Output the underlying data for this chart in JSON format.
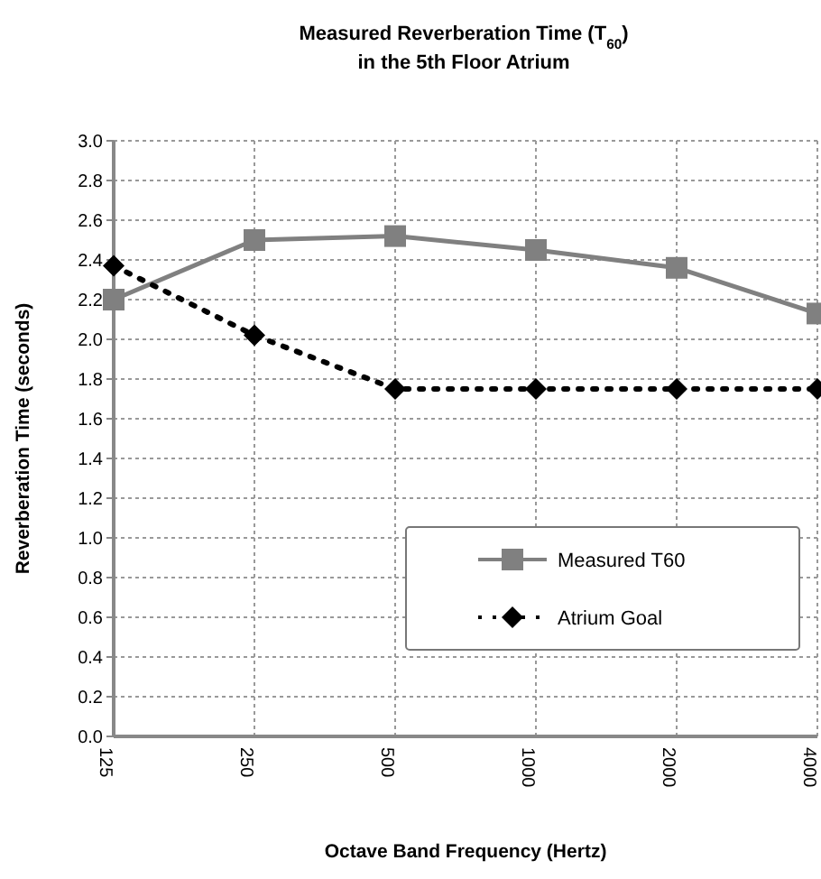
{
  "chart_data": {
    "type": "line",
    "title": "Measured Reverberation Time (T$_{60}$)\nin the 5th Floor Atrium",
    "xlabel": "Octave Band Frequency (Hertz)",
    "ylabel": "Reverberation Time (seconds)",
    "categories": [
      "125",
      "250",
      "500",
      "1000",
      "2000",
      "4000"
    ],
    "series": [
      {
        "name": "Measured T60",
        "color": "#808080",
        "marker": "square",
        "line_style": "solid",
        "values": [
          2.2,
          2.5,
          2.52,
          2.45,
          2.36,
          2.13
        ]
      },
      {
        "name": "Atrium Goal",
        "color": "#000000",
        "marker": "diamond",
        "line_style": "dotted",
        "values": [
          2.37,
          2.02,
          1.75,
          1.75,
          1.75,
          1.75
        ]
      }
    ],
    "ylim": [
      0,
      3
    ],
    "yticks": [
      {
        "value": 0,
        "label": "0.0"
      },
      {
        "value": 0.2,
        "label": "0.2"
      },
      {
        "value": 0.4,
        "label": "0.4"
      },
      {
        "value": 0.6,
        "label": "0.6"
      },
      {
        "value": 0.8,
        "label": "0.8"
      },
      {
        "value": 1,
        "label": "1.0"
      },
      {
        "value": 1.2,
        "label": "1.2"
      },
      {
        "value": 1.4,
        "label": "1.4"
      },
      {
        "value": 1.6,
        "label": "1.6"
      },
      {
        "value": 1.8,
        "label": "1.8"
      },
      {
        "value": 2,
        "label": "2.0"
      },
      {
        "value": 2.2,
        "label": "2.2"
      },
      {
        "value": 2.4,
        "label": "2.4"
      },
      {
        "value": 2.6,
        "label": "2.6"
      },
      {
        "value": 2.8,
        "label": "2.8"
      },
      {
        "value": 3,
        "label": "3.0"
      }
    ],
    "grid": true,
    "legend": "right"
  }
}
